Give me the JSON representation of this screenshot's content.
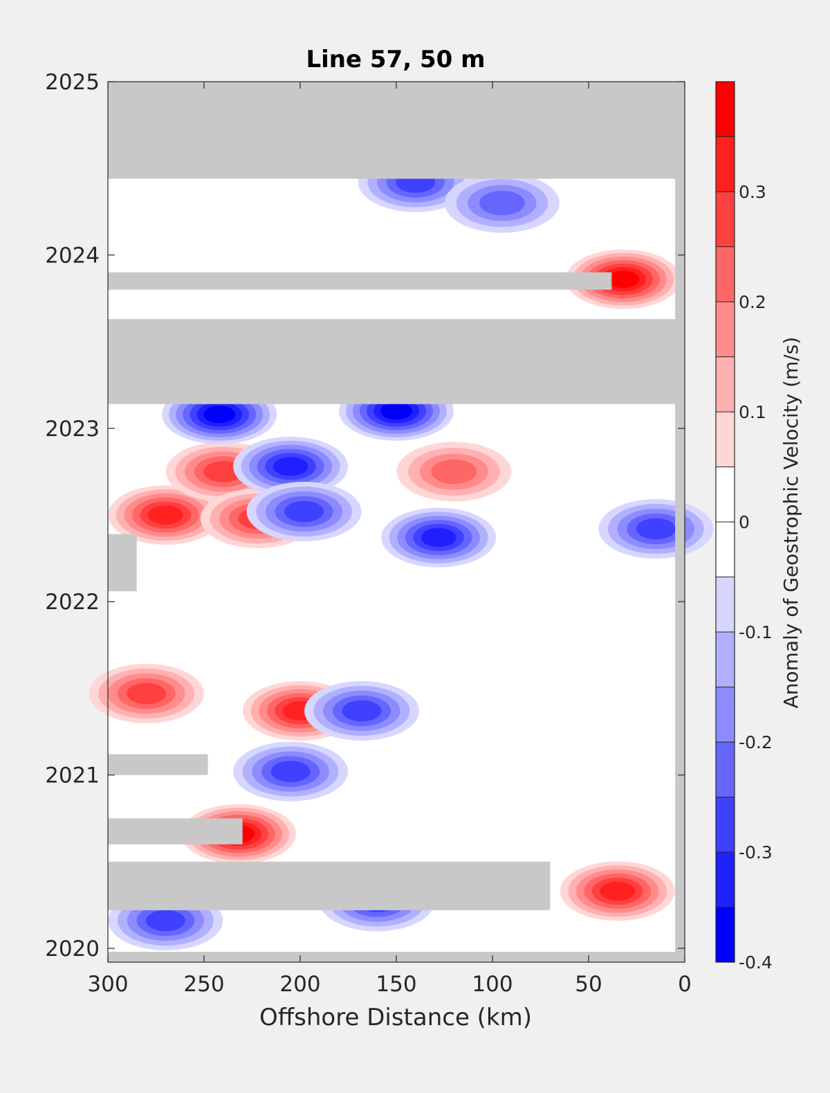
{
  "chart_data": {
    "type": "heatmap",
    "title": "Line 57, 50 m",
    "xlabel": "Offshore Distance (km)",
    "ylabel": "",
    "xlim": [
      300,
      0
    ],
    "ylim": [
      2019.95,
      2025
    ],
    "x_reversed": true,
    "x_ticks": [
      300,
      250,
      200,
      150,
      100,
      50,
      0
    ],
    "y_ticks": [
      2020,
      2021,
      2022,
      2023,
      2024,
      2025
    ],
    "colorbar": {
      "label": "Anomaly of Geostrophic Velocity (m/s)",
      "range": [
        -0.4,
        0.4
      ],
      "ticks": [
        -0.4,
        -0.3,
        -0.2,
        -0.1,
        0,
        0.1,
        0.2,
        0.3
      ],
      "tick_labels": [
        "-0.4",
        "-0.3",
        "-0.2",
        "-0.1",
        "0",
        "0.1",
        "0.2",
        "0.3"
      ],
      "levels": [
        -0.4,
        -0.35,
        -0.3,
        -0.25,
        -0.2,
        -0.15,
        -0.1,
        -0.05,
        0.05,
        0.1,
        0.15,
        0.2,
        0.25,
        0.3,
        0.35,
        0.4
      ],
      "colormap": [
        "#0000ff",
        "#2020ff",
        "#4040ff",
        "#6666ff",
        "#8c8cff",
        "#b0b0ff",
        "#d6d6ff",
        "#ffffff",
        "#ffffff",
        "#ffd6d6",
        "#ffb0b0",
        "#ff8c8c",
        "#ff6666",
        "#ff4040",
        "#ff2020",
        "#ff0000"
      ]
    },
    "missing_color": "#c8c8c8",
    "missing_data_bands": [
      {
        "from": 2024.44,
        "to": 2025.0,
        "x_from": 300,
        "x_to": 0
      },
      {
        "from": 2023.8,
        "to": 2023.9,
        "x_from": 300,
        "x_to": 38
      },
      {
        "from": 2023.14,
        "to": 2023.63,
        "x_from": 300,
        "x_to": 0
      },
      {
        "from": 2022.06,
        "to": 2022.39,
        "x_from": 300,
        "x_to": 285
      },
      {
        "from": 2021.0,
        "to": 2021.12,
        "x_from": 300,
        "x_to": 248
      },
      {
        "from": 2020.6,
        "to": 2020.75,
        "x_from": 300,
        "x_to": 230
      },
      {
        "from": 2020.22,
        "to": 2020.5,
        "x_from": 300,
        "x_to": 70
      }
    ],
    "anomaly_features": [
      {
        "x": 32,
        "t": 2023.86,
        "value": 0.35
      },
      {
        "x": 270,
        "t": 2022.5,
        "value": 0.3
      },
      {
        "x": 232,
        "t": 2020.66,
        "value": 0.35
      },
      {
        "x": 200,
        "t": 2021.37,
        "value": 0.3
      },
      {
        "x": 35,
        "t": 2020.33,
        "value": 0.3
      },
      {
        "x": 240,
        "t": 2022.75,
        "value": 0.25
      },
      {
        "x": 222,
        "t": 2022.48,
        "value": 0.25
      },
      {
        "x": 280,
        "t": 2021.47,
        "value": 0.25
      },
      {
        "x": 120,
        "t": 2022.75,
        "value": 0.2
      },
      {
        "x": 150,
        "t": 2023.1,
        "value": -0.35
      },
      {
        "x": 242,
        "t": 2023.08,
        "value": -0.35
      },
      {
        "x": 205,
        "t": 2022.78,
        "value": -0.3
      },
      {
        "x": 198,
        "t": 2022.52,
        "value": -0.25
      },
      {
        "x": 128,
        "t": 2022.37,
        "value": -0.3
      },
      {
        "x": 15,
        "t": 2022.42,
        "value": -0.25
      },
      {
        "x": 168,
        "t": 2021.37,
        "value": -0.25
      },
      {
        "x": 205,
        "t": 2021.02,
        "value": -0.25
      },
      {
        "x": 270,
        "t": 2020.16,
        "value": -0.25
      },
      {
        "x": 160,
        "t": 2020.27,
        "value": -0.25
      },
      {
        "x": 140,
        "t": 2024.42,
        "value": -0.25
      },
      {
        "x": 95,
        "t": 2024.3,
        "value": -0.2
      }
    ]
  }
}
